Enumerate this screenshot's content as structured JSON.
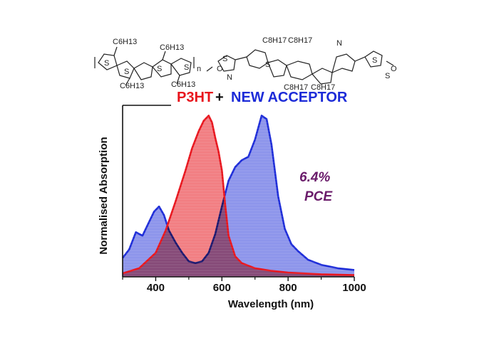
{
  "chart_data": {
    "type": "area",
    "title": "",
    "xlabel": "Wavelength (nm)",
    "ylabel": "Normalised Absorption",
    "xlim": [
      300,
      1000
    ],
    "ylim": [
      0,
      1
    ],
    "xticks": [
      400,
      600,
      800,
      1000
    ],
    "x_tick_labels": [
      "400",
      "600",
      "800",
      "1000"
    ],
    "grid": false,
    "legend": {
      "placement": "top",
      "entries": [
        {
          "label": "P3HT",
          "color": "#e8141c"
        },
        {
          "label": "+",
          "color": "#111111"
        },
        {
          "label": "NEW ACCEPTOR",
          "color": "#1c2bd8"
        }
      ]
    },
    "annotations": [
      "6.4%",
      "PCE"
    ],
    "molecule_labels": {
      "left": [
        "C6H13",
        "C6H13",
        "C6H13",
        "C6H13",
        "S",
        "S",
        "S",
        "S",
        "n"
      ],
      "right": [
        "C8H17",
        "C8H17",
        "C8H17",
        "C8H17",
        "N",
        "N",
        "S",
        "S",
        "O",
        "O",
        "S",
        "S"
      ]
    },
    "series": [
      {
        "name": "P3HT",
        "color": "#e8141c",
        "fill": "#e8141c",
        "x": [
          300,
          350,
          400,
          430,
          460,
          490,
          510,
          530,
          545,
          555,
          560,
          570,
          580,
          590,
          600,
          610,
          620,
          640,
          660,
          700,
          750,
          800,
          900,
          1000
        ],
        "y": [
          0.02,
          0.05,
          0.14,
          0.27,
          0.44,
          0.62,
          0.75,
          0.85,
          0.91,
          0.93,
          0.94,
          0.9,
          0.81,
          0.73,
          0.62,
          0.42,
          0.24,
          0.12,
          0.08,
          0.05,
          0.035,
          0.025,
          0.015,
          0.01
        ]
      },
      {
        "name": "NEW ACCEPTOR",
        "color": "#1c2bd8",
        "fill": "#1c2bd8",
        "x": [
          300,
          320,
          340,
          360,
          380,
          395,
          410,
          425,
          440,
          460,
          480,
          500,
          520,
          540,
          560,
          580,
          600,
          620,
          640,
          660,
          680,
          700,
          720,
          735,
          750,
          770,
          790,
          810,
          830,
          860,
          900,
          950,
          1000
        ],
        "y": [
          0.11,
          0.16,
          0.26,
          0.24,
          0.32,
          0.38,
          0.41,
          0.36,
          0.27,
          0.2,
          0.14,
          0.09,
          0.08,
          0.09,
          0.14,
          0.25,
          0.41,
          0.56,
          0.64,
          0.68,
          0.7,
          0.8,
          0.94,
          0.92,
          0.77,
          0.47,
          0.28,
          0.19,
          0.15,
          0.1,
          0.07,
          0.05,
          0.04
        ]
      }
    ]
  }
}
